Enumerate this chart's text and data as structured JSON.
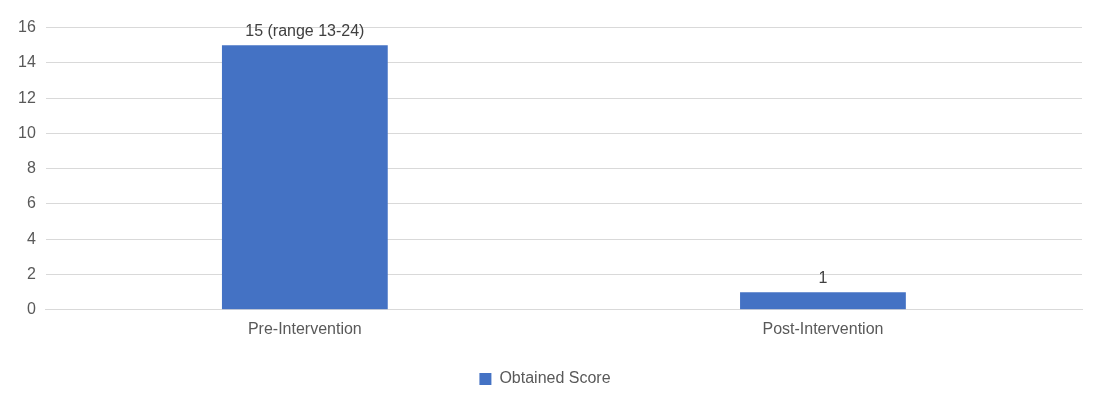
{
  "chart_data": {
    "type": "bar",
    "categories": [
      "Pre-Intervention",
      "Post-Intervention"
    ],
    "series": [
      {
        "name": "Obtained Score",
        "color": "#4472c4",
        "values": [
          15,
          1
        ],
        "value_labels": [
          "15 (range 13-24)",
          "1"
        ]
      }
    ],
    "ylim": [
      0,
      16
    ],
    "yticks": [
      0,
      2,
      4,
      6,
      8,
      10,
      12,
      14,
      16
    ],
    "grid": "y",
    "legend": "bottom"
  }
}
